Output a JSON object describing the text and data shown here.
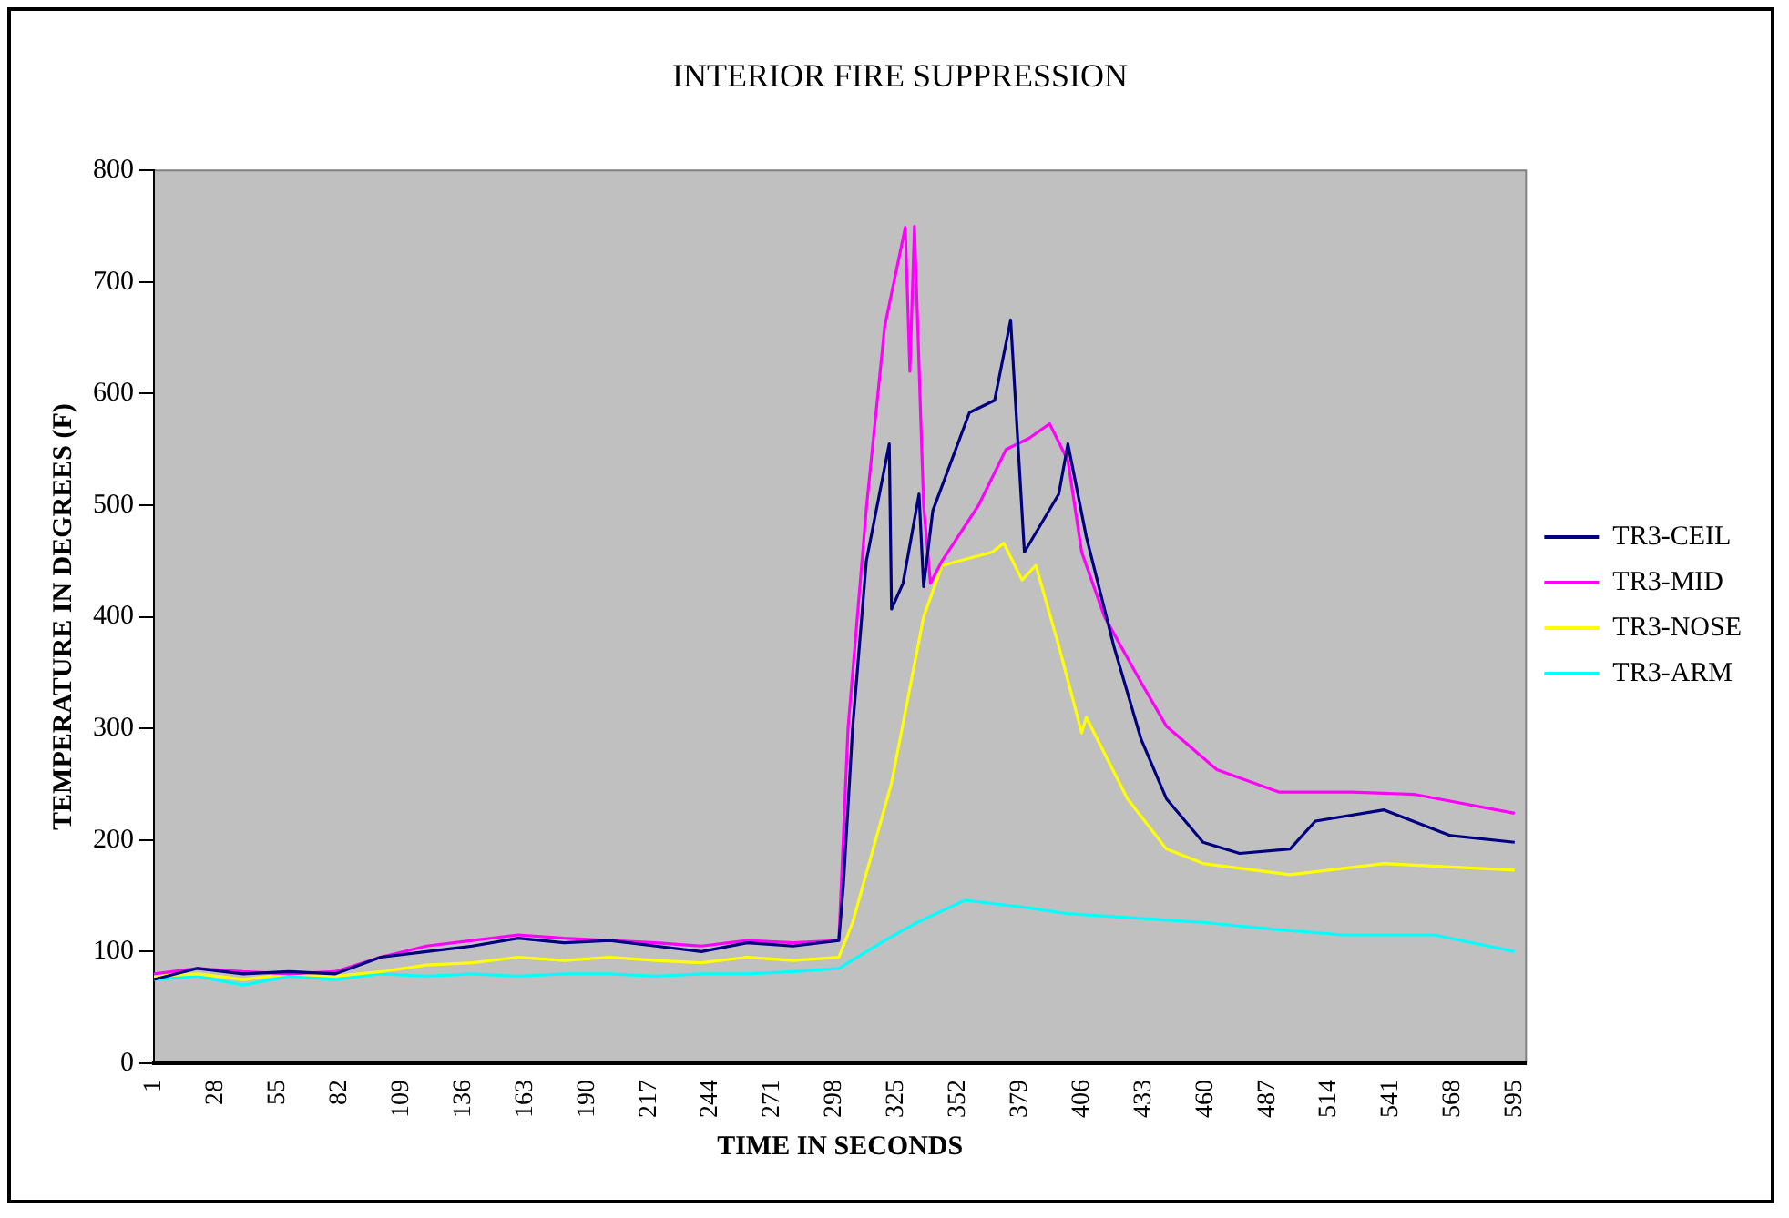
{
  "chart_data": {
    "type": "line",
    "title": "INTERIOR FIRE SUPPRESSION",
    "xlabel": "TIME IN SECONDS",
    "ylabel": "TEMPERATURE IN DEGREES (F)",
    "xlim": [
      1,
      600
    ],
    "xticks": [
      1,
      28,
      55,
      82,
      109,
      136,
      163,
      190,
      217,
      244,
      271,
      298,
      325,
      352,
      379,
      406,
      433,
      460,
      487,
      514,
      541,
      568,
      595
    ],
    "ylim": [
      0,
      800
    ],
    "yticks": [
      0,
      100,
      200,
      300,
      400,
      500,
      600,
      700,
      800
    ],
    "grid": false,
    "legend": "right",
    "marker": "none",
    "line_style": "solid",
    "series": [
      {
        "name": "TR3-CEIL",
        "color": "#000080",
        "x": [
          1,
          20,
          40,
          60,
          80,
          100,
          120,
          140,
          160,
          180,
          200,
          220,
          240,
          260,
          280,
          300,
          302,
          306,
          312,
          322,
          323,
          328,
          335,
          337,
          341,
          357,
          368,
          375,
          381,
          396,
          400,
          408,
          420,
          432,
          443,
          459,
          475,
          497,
          508,
          538,
          567,
          595
        ],
        "values": [
          75,
          85,
          80,
          82,
          80,
          95,
          100,
          105,
          112,
          108,
          110,
          105,
          100,
          108,
          105,
          110,
          160,
          300,
          450,
          555,
          407,
          430,
          510,
          427,
          495,
          583,
          594,
          666,
          458,
          510,
          555,
          472,
          374,
          290,
          237,
          198,
          188,
          192,
          217,
          227,
          204,
          198
        ]
      },
      {
        "name": "TR3-MID",
        "color": "#ff00ff",
        "x": [
          1,
          20,
          40,
          60,
          80,
          100,
          120,
          140,
          160,
          180,
          200,
          220,
          240,
          260,
          280,
          300,
          304,
          312,
          320,
          329,
          331,
          333,
          337,
          340,
          345,
          361,
          373,
          383,
          392,
          400,
          406,
          416,
          432,
          443,
          465,
          492,
          524,
          551,
          595
        ],
        "values": [
          80,
          85,
          82,
          80,
          82,
          95,
          105,
          110,
          115,
          112,
          110,
          108,
          105,
          110,
          108,
          110,
          300,
          497,
          660,
          749,
          620,
          750,
          500,
          430,
          450,
          500,
          550,
          560,
          573,
          540,
          458,
          400,
          341,
          302,
          263,
          243,
          243,
          241,
          224
        ]
      },
      {
        "name": "TR3-NOSE",
        "color": "#ffff00",
        "x": [
          1,
          20,
          40,
          60,
          80,
          100,
          120,
          140,
          160,
          180,
          200,
          220,
          240,
          260,
          280,
          300,
          306,
          323,
          337,
          345,
          367,
          372,
          380,
          386,
          396,
          406,
          408,
          426,
          443,
          459,
          497,
          538,
          595
        ],
        "values": [
          78,
          80,
          75,
          80,
          78,
          82,
          88,
          90,
          95,
          92,
          95,
          92,
          90,
          95,
          92,
          95,
          126,
          251,
          400,
          446,
          458,
          466,
          433,
          446,
          374,
          296,
          310,
          237,
          192,
          179,
          169,
          179,
          173
        ]
      },
      {
        "name": "TR3-ARM",
        "color": "#00ffff",
        "x": [
          1,
          20,
          40,
          60,
          80,
          100,
          120,
          140,
          160,
          180,
          200,
          220,
          240,
          260,
          280,
          300,
          320,
          334,
          355,
          380,
          400,
          430,
          460,
          490,
          520,
          560,
          595
        ],
        "values": [
          75,
          78,
          70,
          78,
          75,
          80,
          78,
          80,
          78,
          80,
          80,
          78,
          80,
          80,
          82,
          85,
          110,
          126,
          146,
          140,
          134,
          130,
          126,
          120,
          115,
          115,
          100
        ]
      }
    ]
  }
}
